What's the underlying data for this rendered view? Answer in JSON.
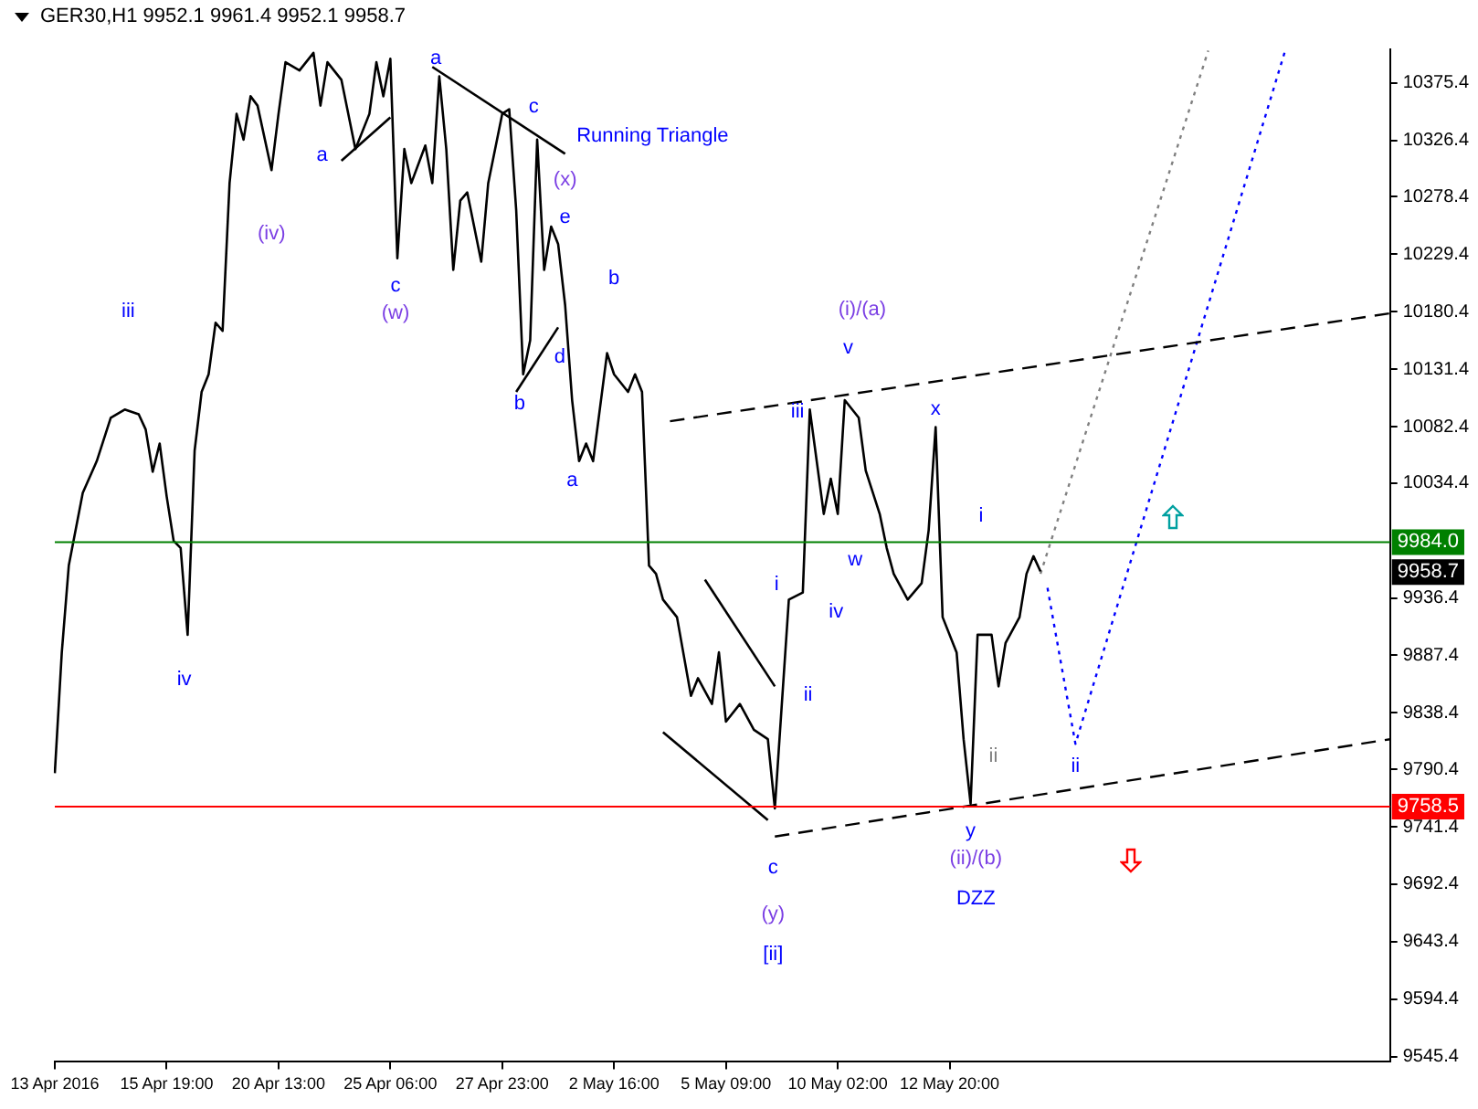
{
  "chart_data": {
    "type": "line",
    "title": "GER30,H1  9952.1 9961.4 9952.1 9958.7",
    "categories": [
      "13 Apr 2016",
      null,
      null,
      null,
      null,
      null,
      null,
      null,
      null,
      null,
      null,
      null,
      null,
      null,
      null,
      null,
      "15 Apr 19:00",
      null,
      null,
      null,
      null,
      null,
      null,
      null,
      null,
      null,
      null,
      null,
      null,
      null,
      null,
      null,
      "20 Apr 13:00",
      null,
      null,
      null,
      null,
      null,
      null,
      null,
      null,
      null,
      null,
      null,
      null,
      null,
      null,
      null,
      "25 Apr 06:00",
      null,
      null,
      null,
      null,
      null,
      null,
      null,
      null,
      null,
      null,
      null,
      null,
      null,
      null,
      null,
      "27 Apr 23:00",
      null,
      null,
      null,
      null,
      null,
      null,
      null,
      null,
      null,
      null,
      null,
      null,
      null,
      null,
      null,
      "2 May 16:00",
      null,
      null,
      null,
      null,
      null,
      null,
      null,
      null,
      null,
      null,
      null,
      null,
      null,
      null,
      null,
      "5 May 09:00",
      null,
      null,
      null,
      null,
      null,
      null,
      null,
      null,
      null,
      null,
      null,
      null,
      null,
      null,
      null,
      "10 May 02:00",
      null,
      null,
      null,
      null,
      null,
      null,
      null,
      null,
      null,
      null,
      null,
      null,
      null,
      null,
      null,
      "12 May 20:00",
      null,
      null,
      null,
      null,
      null,
      null,
      null,
      null,
      null,
      null,
      null,
      null,
      null,
      null,
      null,
      null,
      null,
      null,
      null,
      null,
      null,
      null,
      null,
      null,
      null,
      null,
      null,
      null,
      null,
      null,
      null,
      null,
      null,
      null,
      null,
      null,
      null,
      null,
      null,
      null,
      null,
      null,
      null,
      null,
      null,
      null,
      null,
      null,
      null,
      null,
      null,
      null,
      null,
      null,
      null,
      null,
      null,
      null,
      null,
      null,
      null,
      null,
      null
    ],
    "ylim": [
      9541,
      10404
    ],
    "yticks": [
      9545.4,
      9594.4,
      9643.4,
      9692.4,
      9741.4,
      9790.4,
      9838.4,
      9887.4,
      9936.4,
      10034.4,
      10082.4,
      10131.4,
      10180.4,
      10229.4,
      10278.4,
      10326.4,
      10375.4
    ],
    "grid": false,
    "legend": false,
    "marker": "none",
    "series": [
      {
        "color": "#000000",
        "line_style": "solid",
        "values": [
          9787,
          9890,
          9964,
          null,
          10026,
          null,
          10053,
          null,
          10090,
          null,
          10097,
          null,
          10093,
          10080,
          10044,
          10068,
          10023,
          9985,
          9979,
          9905,
          10062,
          10112,
          10127,
          10171,
          10164,
          10290,
          10349,
          10327,
          10364,
          10356,
          null,
          10301,
          10349,
          10393,
          null,
          10386,
          null,
          10401,
          10356,
          10393,
          null,
          10378,
          null,
          10319,
          null,
          10349,
          10393,
          10364,
          10396,
          10226,
          10319,
          10290,
          null,
          10322,
          10290,
          10381,
          10319,
          10216,
          10275,
          10282,
          null,
          10223,
          10290,
          null,
          10349,
          10353,
          10267,
          10127,
          10156,
          10327,
          10216,
          10253,
          10238,
          10186,
          10105,
          10053,
          10068,
          10053,
          null,
          10145,
          10127,
          null,
          10112,
          10127,
          10112,
          9964,
          9957,
          9935,
          null,
          9920,
          null,
          9853,
          9868,
          null,
          9846,
          9890,
          9831,
          null,
          9846,
          null,
          9824,
          null,
          9816,
          9757,
          9846,
          9935,
          null,
          9941,
          10097,
          null,
          10008,
          10038,
          10008,
          10105,
          null,
          10090,
          10045,
          null,
          10008,
          9979,
          9957,
          null,
          9935,
          null,
          9949,
          9994,
          10082,
          9920,
          null,
          9890,
          9816,
          9761,
          9905,
          null,
          9905,
          9861,
          9898,
          null,
          9920,
          9957,
          9972,
          9959,
          null,
          null,
          null,
          null,
          null,
          null,
          null,
          null,
          null,
          null,
          null,
          null,
          null,
          null,
          null,
          null,
          null,
          null,
          null,
          null,
          null,
          null,
          null,
          null,
          null,
          null,
          null,
          null,
          null,
          null,
          null,
          null,
          null,
          null,
          null,
          null,
          null,
          null,
          null,
          null,
          null,
          null,
          null,
          null,
          null,
          null,
          null,
          null,
          null,
          null
        ]
      },
      {
        "color": "#000000",
        "line_style": "solid",
        "values": [
          null,
          null,
          null,
          null,
          null,
          null,
          null,
          null,
          null,
          null,
          null,
          null,
          null,
          null,
          null,
          null,
          null,
          null,
          null,
          null,
          null,
          null,
          null,
          null,
          null,
          null,
          null,
          null,
          null,
          null,
          null,
          null,
          null,
          null,
          null,
          null,
          null,
          null,
          null,
          null,
          null,
          10309,
          null,
          null,
          null,
          null,
          null,
          null,
          10346,
          null,
          null,
          null,
          null,
          null,
          null,
          null,
          null,
          null,
          null,
          null,
          null,
          null,
          null,
          null,
          null,
          null,
          null,
          null,
          null,
          null,
          null,
          null,
          null,
          null,
          null,
          null,
          null,
          null,
          null,
          null,
          null,
          null,
          null,
          null,
          null,
          null,
          null,
          null,
          null,
          null,
          null,
          null,
          null,
          null,
          null,
          null,
          null,
          null,
          null,
          null,
          null,
          null,
          null,
          null,
          null,
          null,
          null,
          null,
          null,
          null,
          null,
          null,
          null,
          null,
          null,
          null,
          null,
          null,
          null,
          null,
          null,
          null,
          null,
          null,
          null,
          null,
          null,
          null,
          null,
          null,
          null,
          null,
          null,
          null,
          null,
          null,
          null,
          null,
          null,
          null,
          null,
          null,
          null,
          null,
          null,
          null,
          null,
          null,
          null,
          null,
          null,
          null,
          null,
          null,
          null,
          null,
          null,
          null,
          null,
          null,
          null,
          null,
          null,
          null,
          null,
          null,
          null,
          null,
          null,
          null,
          null,
          null,
          null,
          null,
          null,
          null,
          null,
          null,
          null,
          null,
          null,
          null,
          null,
          null,
          null,
          null,
          null,
          null,
          null,
          null,
          null,
          null
        ]
      },
      {
        "color": "#000000",
        "line_style": "solid",
        "values": [
          null,
          null,
          null,
          null,
          null,
          null,
          null,
          null,
          null,
          null,
          null,
          null,
          null,
          null,
          null,
          null,
          null,
          null,
          null,
          null,
          null,
          null,
          null,
          null,
          null,
          null,
          null,
          null,
          null,
          null,
          null,
          null,
          null,
          null,
          null,
          null,
          null,
          null,
          null,
          null,
          null,
          null,
          null,
          null,
          null,
          null,
          null,
          null,
          null,
          null,
          null,
          null,
          null,
          null,
          10389,
          null,
          null,
          null,
          null,
          null,
          null,
          null,
          null,
          null,
          null,
          null,
          null,
          null,
          null,
          null,
          null,
          null,
          null,
          10315,
          null,
          null,
          null,
          null,
          null,
          null,
          null,
          null,
          null,
          null,
          null,
          null,
          null,
          null,
          null,
          null,
          null,
          null,
          null,
          null,
          null,
          null,
          null,
          null,
          null,
          null,
          null,
          null,
          null,
          null,
          null,
          null,
          null,
          null,
          null,
          null,
          null,
          null,
          null,
          null,
          null,
          null,
          null,
          null,
          null,
          null,
          null,
          null,
          null,
          null,
          null,
          null,
          null,
          null,
          null,
          null,
          null,
          null,
          null,
          null,
          null,
          null,
          null,
          null,
          null,
          null,
          null,
          null,
          null,
          null,
          null,
          null,
          null,
          null,
          null,
          null,
          null,
          null,
          null,
          null,
          null,
          null,
          null,
          null,
          null,
          null,
          null,
          null,
          null,
          null,
          null,
          null,
          null,
          null,
          null,
          null,
          null,
          null,
          null,
          null,
          null,
          null,
          null,
          null,
          null,
          null,
          null,
          null,
          null,
          null,
          null,
          null,
          null,
          null,
          null,
          null,
          null,
          null
        ]
      },
      {
        "color": "#000000",
        "line_style": "solid",
        "values": [
          null,
          null,
          null,
          null,
          null,
          null,
          null,
          null,
          null,
          null,
          null,
          null,
          null,
          null,
          null,
          null,
          null,
          null,
          null,
          null,
          null,
          null,
          null,
          null,
          null,
          null,
          null,
          null,
          null,
          null,
          null,
          null,
          null,
          null,
          null,
          null,
          null,
          null,
          null,
          null,
          null,
          null,
          null,
          null,
          null,
          null,
          null,
          null,
          null,
          null,
          null,
          null,
          null,
          null,
          null,
          null,
          null,
          null,
          null,
          null,
          null,
          null,
          null,
          null,
          null,
          null,
          10112,
          null,
          null,
          null,
          null,
          null,
          10167,
          null,
          null,
          null,
          null,
          null,
          null,
          null,
          null,
          null,
          null,
          null,
          null,
          null,
          null,
          null,
          null,
          null,
          null,
          null,
          null,
          null,
          null,
          null,
          null,
          null,
          null,
          null,
          null,
          null,
          null,
          null,
          null,
          null,
          null,
          null,
          null,
          null,
          null,
          null,
          null,
          null,
          null,
          null,
          null,
          null,
          null,
          null,
          null,
          null,
          null,
          null,
          null,
          null,
          null,
          null,
          null,
          null,
          null,
          null,
          null,
          null,
          null,
          null,
          null,
          null,
          null,
          null,
          null,
          null,
          null,
          null,
          null,
          null,
          null,
          null,
          null,
          null,
          null,
          null,
          null,
          null,
          null,
          null,
          null,
          null,
          null,
          null,
          null,
          null,
          null,
          null,
          null,
          null,
          null,
          null,
          null,
          null,
          null,
          null,
          null,
          null,
          null,
          null,
          null,
          null,
          null,
          null,
          null,
          null,
          null,
          null,
          null,
          null,
          null,
          null,
          null,
          null,
          null,
          null
        ]
      },
      {
        "color": "#000000",
        "line_style": "solid",
        "values": [
          null,
          null,
          null,
          null,
          null,
          null,
          null,
          null,
          null,
          null,
          null,
          null,
          null,
          null,
          null,
          null,
          null,
          null,
          null,
          null,
          null,
          null,
          null,
          null,
          null,
          null,
          null,
          null,
          null,
          null,
          null,
          null,
          null,
          null,
          null,
          null,
          null,
          null,
          null,
          null,
          null,
          null,
          null,
          null,
          null,
          null,
          null,
          null,
          null,
          null,
          null,
          null,
          null,
          null,
          null,
          null,
          null,
          null,
          null,
          null,
          null,
          null,
          null,
          null,
          null,
          null,
          null,
          null,
          null,
          null,
          null,
          null,
          null,
          null,
          null,
          null,
          null,
          null,
          null,
          null,
          null,
          null,
          null,
          null,
          null,
          null,
          null,
          null,
          null,
          null,
          null,
          null,
          null,
          9952,
          null,
          null,
          null,
          null,
          null,
          null,
          null,
          null,
          null,
          9861,
          null,
          null,
          null,
          null,
          null,
          null,
          null,
          null,
          null,
          null,
          null,
          null,
          null,
          null,
          null,
          null,
          null,
          null,
          null,
          null,
          null,
          null,
          null,
          null,
          null,
          null,
          null,
          null,
          null,
          null,
          null,
          null,
          null,
          null,
          null,
          null,
          null,
          null,
          null,
          null,
          null,
          null,
          null,
          null,
          null,
          null,
          null,
          null,
          null,
          null,
          null,
          null,
          null,
          null,
          null,
          null,
          null,
          null,
          null,
          null,
          null,
          null,
          null,
          null,
          null,
          null,
          null,
          null,
          null,
          null,
          null,
          null,
          null,
          null,
          null,
          null,
          null,
          null,
          null,
          null,
          null,
          null,
          null,
          null,
          null,
          null,
          null,
          null
        ]
      },
      {
        "color": "#000000",
        "line_style": "solid",
        "values": [
          null,
          null,
          null,
          null,
          null,
          null,
          null,
          null,
          null,
          null,
          null,
          null,
          null,
          null,
          null,
          null,
          null,
          null,
          null,
          null,
          null,
          null,
          null,
          null,
          null,
          null,
          null,
          null,
          null,
          null,
          null,
          null,
          null,
          null,
          null,
          null,
          null,
          null,
          null,
          null,
          null,
          null,
          null,
          null,
          null,
          null,
          null,
          null,
          null,
          null,
          null,
          null,
          null,
          null,
          null,
          null,
          null,
          null,
          null,
          null,
          null,
          null,
          null,
          null,
          null,
          null,
          null,
          null,
          null,
          null,
          null,
          null,
          null,
          null,
          null,
          null,
          null,
          null,
          null,
          null,
          null,
          null,
          null,
          null,
          null,
          null,
          null,
          9822,
          null,
          null,
          null,
          null,
          null,
          null,
          null,
          null,
          null,
          null,
          null,
          null,
          null,
          null,
          9747,
          null,
          null,
          null,
          null,
          null,
          null,
          null,
          null,
          null,
          null,
          null,
          null,
          null,
          null,
          null,
          null,
          null,
          null,
          null,
          null,
          null,
          null,
          null,
          null,
          null,
          null,
          null,
          null,
          null,
          null,
          null,
          null,
          null,
          null,
          null,
          null,
          null,
          null,
          null,
          null,
          null,
          null,
          null,
          null,
          null,
          null,
          null,
          null,
          null,
          null,
          null,
          null,
          null,
          null,
          null,
          null,
          null,
          null,
          null,
          null,
          null,
          null,
          null,
          null,
          null,
          null,
          null,
          null,
          null,
          null,
          null,
          null,
          null,
          null,
          null,
          null,
          null,
          null,
          null,
          null,
          null,
          null,
          null,
          null,
          null,
          null,
          null,
          null,
          null
        ]
      },
      {
        "color": "#000000",
        "line_style": "dashed",
        "values": [
          null,
          null,
          null,
          null,
          null,
          null,
          null,
          null,
          null,
          null,
          null,
          null,
          null,
          null,
          null,
          null,
          null,
          null,
          null,
          null,
          null,
          null,
          null,
          null,
          null,
          null,
          null,
          null,
          null,
          null,
          null,
          null,
          null,
          null,
          null,
          null,
          null,
          null,
          null,
          null,
          null,
          null,
          null,
          null,
          null,
          null,
          null,
          null,
          null,
          null,
          null,
          null,
          null,
          null,
          null,
          null,
          null,
          null,
          null,
          null,
          null,
          null,
          null,
          null,
          null,
          null,
          null,
          null,
          null,
          null,
          null,
          null,
          null,
          null,
          null,
          null,
          null,
          null,
          null,
          null,
          null,
          null,
          null,
          null,
          null,
          null,
          null,
          null,
          null,
          null,
          null,
          null,
          null,
          null,
          null,
          null,
          null,
          null,
          null,
          null,
          null,
          null,
          null,
          9733,
          null,
          null,
          null,
          null,
          null,
          null,
          null,
          null,
          null,
          null,
          null,
          null,
          null,
          null,
          null,
          null,
          null,
          null,
          null,
          null,
          null,
          null,
          null,
          null,
          null,
          null,
          null,
          null,
          null,
          null,
          null,
          null,
          null,
          null,
          null,
          null,
          null,
          null,
          null,
          null,
          null,
          null,
          null,
          null,
          null,
          null,
          null,
          null,
          null,
          null,
          null,
          null,
          null,
          null,
          null,
          null,
          null,
          null,
          null,
          null,
          null,
          null,
          null,
          null,
          null,
          null,
          null,
          null,
          null,
          null,
          null,
          null,
          null,
          null,
          null,
          null,
          null,
          null,
          null,
          null,
          null,
          null,
          null,
          null,
          null,
          null,
          null,
          9816
        ]
      },
      {
        "color": "#000000",
        "line_style": "dashed",
        "values": [
          null,
          null,
          null,
          null,
          null,
          null,
          null,
          null,
          null,
          null,
          null,
          null,
          null,
          null,
          null,
          null,
          null,
          null,
          null,
          null,
          null,
          null,
          null,
          null,
          null,
          null,
          null,
          null,
          null,
          null,
          null,
          null,
          null,
          null,
          null,
          null,
          null,
          null,
          null,
          null,
          null,
          null,
          null,
          null,
          null,
          null,
          null,
          null,
          null,
          null,
          null,
          null,
          null,
          null,
          null,
          null,
          null,
          null,
          null,
          null,
          null,
          null,
          null,
          null,
          null,
          null,
          null,
          null,
          null,
          null,
          null,
          null,
          null,
          null,
          null,
          null,
          null,
          null,
          null,
          null,
          null,
          null,
          null,
          null,
          null,
          null,
          null,
          null,
          10087,
          null,
          null,
          null,
          null,
          null,
          null,
          null,
          null,
          null,
          null,
          null,
          null,
          null,
          null,
          null,
          null,
          null,
          null,
          null,
          null,
          null,
          null,
          null,
          null,
          null,
          null,
          null,
          null,
          null,
          null,
          null,
          null,
          null,
          null,
          null,
          null,
          null,
          null,
          null,
          null,
          null,
          null,
          null,
          null,
          null,
          null,
          null,
          null,
          null,
          null,
          null,
          null,
          null,
          null,
          null,
          null,
          null,
          null,
          null,
          null,
          null,
          null,
          null,
          null,
          null,
          null,
          null,
          null,
          null,
          null,
          null,
          null,
          null,
          null,
          null,
          null,
          null,
          null,
          null,
          null,
          null,
          null,
          null,
          null,
          null,
          null,
          null,
          null,
          null,
          null,
          null,
          null,
          null,
          null,
          null,
          null,
          null,
          null,
          null,
          null,
          null,
          null,
          10179
        ]
      },
      {
        "color": "#808080",
        "line_style": "dotted",
        "values": [
          null,
          null,
          null,
          null,
          null,
          null,
          null,
          null,
          null,
          null,
          null,
          null,
          null,
          null,
          null,
          null,
          null,
          null,
          null,
          null,
          null,
          null,
          null,
          null,
          null,
          null,
          null,
          null,
          null,
          null,
          null,
          null,
          null,
          null,
          null,
          null,
          null,
          null,
          null,
          null,
          null,
          null,
          null,
          null,
          null,
          null,
          null,
          null,
          null,
          null,
          null,
          null,
          null,
          null,
          null,
          null,
          null,
          null,
          null,
          null,
          null,
          null,
          null,
          null,
          null,
          null,
          null,
          null,
          null,
          null,
          null,
          null,
          null,
          null,
          null,
          null,
          null,
          null,
          null,
          null,
          null,
          null,
          null,
          null,
          null,
          null,
          null,
          null,
          null,
          null,
          null,
          null,
          null,
          null,
          null,
          null,
          null,
          null,
          null,
          null,
          null,
          null,
          null,
          null,
          null,
          null,
          null,
          null,
          null,
          null,
          null,
          null,
          null,
          null,
          null,
          null,
          null,
          null,
          null,
          null,
          null,
          null,
          null,
          null,
          null,
          null,
          null,
          null,
          null,
          null,
          null,
          null,
          null,
          null,
          null,
          null,
          null,
          null,
          null,
          null,
          null,
          9957,
          null,
          null,
          null,
          null,
          null,
          null,
          null,
          null,
          null,
          null,
          null,
          null,
          null,
          null,
          null,
          null,
          null,
          null,
          null,
          null,
          null,
          null,
          null,
          10403,
          null,
          null,
          null,
          null,
          null,
          null,
          null,
          null,
          null,
          null,
          null,
          null,
          null,
          null,
          null,
          null,
          null,
          null,
          null,
          null,
          null,
          null,
          null,
          null,
          null,
          null
        ]
      },
      {
        "color": "#0000ff",
        "line_style": "dotted",
        "values": [
          null,
          null,
          null,
          null,
          null,
          null,
          null,
          null,
          null,
          null,
          null,
          null,
          null,
          null,
          null,
          null,
          null,
          null,
          null,
          null,
          null,
          null,
          null,
          null,
          null,
          null,
          null,
          null,
          null,
          null,
          null,
          null,
          null,
          null,
          null,
          null,
          null,
          null,
          null,
          null,
          null,
          null,
          null,
          null,
          null,
          null,
          null,
          null,
          null,
          null,
          null,
          null,
          null,
          null,
          null,
          null,
          null,
          null,
          null,
          null,
          null,
          null,
          null,
          null,
          null,
          null,
          null,
          null,
          null,
          null,
          null,
          null,
          null,
          null,
          null,
          null,
          null,
          null,
          null,
          null,
          null,
          null,
          null,
          null,
          null,
          null,
          null,
          null,
          null,
          null,
          null,
          null,
          null,
          null,
          null,
          null,
          null,
          null,
          null,
          null,
          null,
          null,
          null,
          null,
          null,
          null,
          null,
          null,
          null,
          null,
          null,
          null,
          null,
          null,
          null,
          null,
          null,
          null,
          null,
          null,
          null,
          null,
          null,
          null,
          null,
          null,
          null,
          null,
          null,
          null,
          null,
          null,
          null,
          null,
          null,
          null,
          null,
          null,
          null,
          null,
          null,
          null,
          9945,
          null,
          null,
          null,
          9812,
          null,
          null,
          null,
          null,
          null,
          null,
          null,
          null,
          null,
          null,
          null,
          null,
          null,
          null,
          null,
          null,
          null,
          null,
          null,
          null,
          null,
          null,
          null,
          null,
          null,
          null,
          null,
          null,
          null,
          10403,
          null,
          null,
          null,
          null,
          null,
          null,
          null,
          null,
          null,
          null,
          null,
          null,
          null,
          null,
          null
        ]
      }
    ],
    "ref_lines": [
      {
        "axis": "y",
        "value": 9984.0,
        "label": "9984.0",
        "color": "#008000"
      },
      {
        "axis": "y",
        "value": 9758.5,
        "label": "9758.5",
        "color": "#ff0000"
      }
    ],
    "annotations": [
      "9958.7",
      "iii",
      "(iv)",
      "iv",
      "a",
      "c",
      "(w)",
      "a",
      "c",
      "Running Triangle",
      "(x)",
      "e",
      "b",
      "d",
      "b",
      "a",
      "(i)/(a)",
      "v",
      "iii",
      "x",
      "i",
      "w",
      "i",
      "iv",
      "ii",
      "ii",
      "ii",
      "y",
      "(ii)/(b)",
      "DZZ",
      "c",
      "(y)",
      "[ii]"
    ]
  }
}
